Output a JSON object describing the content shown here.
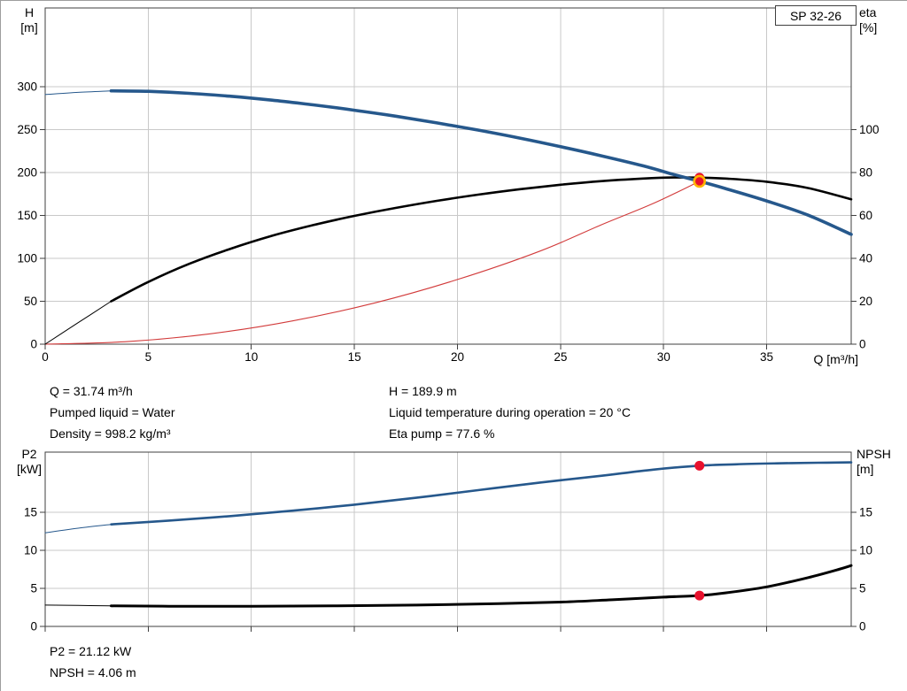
{
  "pump_label": "SP 32-26",
  "colors": {
    "curve_blue": "#26588c",
    "curve_black": "#000000",
    "curve_red": "#d23b3b",
    "grid": "#c9c9c9",
    "axis": "#3f3f3f",
    "marker_red": "#e8112d",
    "marker_ring": "#ffb400"
  },
  "info_top": {
    "col1": [
      "Q = 31.74 m³/h",
      "Pumped liquid = Water",
      "Density = 998.2 kg/m³"
    ],
    "col2": [
      "H = 189.9 m",
      "Liquid temperature during operation = 20 °C",
      "Eta pump = 77.6 %"
    ]
  },
  "info_bottom": [
    "P2 = 21.12 kW",
    "NPSH = 4.06 m"
  ],
  "chart_data": [
    {
      "type": "line",
      "id": "qh-eta",
      "title": "",
      "x_axis": {
        "label": "Q [m³/h]",
        "min": 0,
        "max": 39.1,
        "ticks": [
          0,
          5,
          10,
          15,
          20,
          25,
          30,
          35
        ],
        "show_labels": true
      },
      "y_left": {
        "label_lines": [
          "H",
          "[m]"
        ],
        "min": 0,
        "max": 392,
        "ticks": [
          0,
          50,
          100,
          150,
          200,
          250,
          300
        ]
      },
      "y_right": {
        "label_lines": [
          "eta",
          "[%]"
        ],
        "min": 0,
        "max": 156.7,
        "ticks": [
          0,
          20,
          40,
          60,
          80,
          100
        ]
      },
      "curves": [
        {
          "name": "system-curve",
          "axis": "left",
          "color_key": "curve_red",
          "segments": [
            {
              "width": 1.1,
              "points": [
                [
                  0,
                  0
                ],
                [
                  4,
                  3
                ],
                [
                  8,
                  12.1
                ],
                [
                  12,
                  27.1
                ],
                [
                  16,
                  48.2
                ],
                [
                  20,
                  75.4
                ],
                [
                  24,
                  108.5
                ],
                [
                  27,
                  139.4
                ],
                [
                  29.5,
                  164.1
                ],
                [
                  31.74,
                  189.9
                ]
              ]
            }
          ]
        },
        {
          "name": "eta-curve",
          "axis": "right",
          "color_key": "curve_black",
          "segments": [
            {
              "width": 1,
              "points": [
                [
                  0,
                  0
                ],
                [
                  1.6,
                  10
                ],
                [
                  3.2,
                  20
                ]
              ]
            },
            {
              "width": 2.6,
              "points": [
                [
                  3.2,
                  20
                ],
                [
                  5,
                  29
                ],
                [
                  7,
                  37.5
                ],
                [
                  9,
                  44.5
                ],
                [
                  11,
                  50.5
                ],
                [
                  13,
                  55.5
                ],
                [
                  15,
                  59.8
                ],
                [
                  17,
                  63.5
                ],
                [
                  19,
                  66.8
                ],
                [
                  21,
                  69.7
                ],
                [
                  23,
                  72.2
                ],
                [
                  25,
                  74.3
                ],
                [
                  27,
                  76
                ],
                [
                  29,
                  77.2
                ],
                [
                  30.5,
                  77.7
                ],
                [
                  31.74,
                  77.6
                ],
                [
                  33,
                  77.2
                ],
                [
                  35,
                  75.7
                ],
                [
                  37,
                  72.8
                ],
                [
                  39.1,
                  67.5
                ]
              ]
            }
          ]
        },
        {
          "name": "qh-curve",
          "axis": "left",
          "color_key": "curve_blue",
          "segments": [
            {
              "width": 1,
              "points": [
                [
                  0,
                  291
                ],
                [
                  1.6,
                  293.6
                ],
                [
                  3.2,
                  295.3
                ]
              ]
            },
            {
              "width": 3.6,
              "points": [
                [
                  3.2,
                  295.3
                ],
                [
                  5,
                  294.8
                ],
                [
                  7,
                  292.5
                ],
                [
                  9,
                  289
                ],
                [
                  11,
                  284.5
                ],
                [
                  13,
                  279
                ],
                [
                  15,
                  272.8
                ],
                [
                  17,
                  265.8
                ],
                [
                  19,
                  258
                ],
                [
                  21,
                  249.6
                ],
                [
                  23,
                  240.4
                ],
                [
                  25,
                  230.3
                ],
                [
                  27,
                  219.5
                ],
                [
                  29,
                  208
                ],
                [
                  30.5,
                  197.8
                ],
                [
                  31.74,
                  189.9
                ],
                [
                  33,
                  181.5
                ],
                [
                  35,
                  167
                ],
                [
                  37,
                  150.5
                ],
                [
                  39.1,
                  128
                ]
              ]
            }
          ]
        }
      ],
      "markers": [
        {
          "name": "eta-duty-marker",
          "q": 31.74,
          "value": 77.6,
          "axis": "right",
          "r": 5.5,
          "fill_key": "marker_red"
        },
        {
          "name": "duty-point-marker",
          "q": 31.74,
          "value": 189.9,
          "axis": "left",
          "r": 6,
          "fill_key": "marker_red",
          "ring_key": "marker_ring",
          "ring_width": 2.6
        }
      ]
    },
    {
      "type": "line",
      "id": "p2-npsh",
      "title": "",
      "x_axis": {
        "label": "",
        "min": 0,
        "max": 39.1,
        "ticks": [
          0,
          5,
          10,
          15,
          20,
          25,
          30,
          35
        ],
        "show_labels": false
      },
      "y_left": {
        "label_lines": [
          "P2",
          "[kW]"
        ],
        "min": 0,
        "max": 22.9,
        "ticks": [
          0,
          5,
          10,
          15
        ]
      },
      "y_right": {
        "label_lines": [
          "NPSH",
          "[m]"
        ],
        "min": 0,
        "max": 22.9,
        "ticks": [
          0,
          5,
          10,
          15
        ]
      },
      "curves": [
        {
          "name": "p2-curve",
          "axis": "left",
          "color_key": "curve_blue",
          "segments": [
            {
              "width": 1,
              "points": [
                [
                  0,
                  12.3
                ],
                [
                  1.6,
                  12.9
                ],
                [
                  3.2,
                  13.4
                ]
              ]
            },
            {
              "width": 2.6,
              "points": [
                [
                  3.2,
                  13.4
                ],
                [
                  6,
                  13.9
                ],
                [
                  9,
                  14.5
                ],
                [
                  12,
                  15.2
                ],
                [
                  15,
                  16
                ],
                [
                  18,
                  16.9
                ],
                [
                  21,
                  17.9
                ],
                [
                  24,
                  18.9
                ],
                [
                  27,
                  19.8
                ],
                [
                  29.5,
                  20.6
                ],
                [
                  31.74,
                  21.12
                ],
                [
                  33.5,
                  21.3
                ],
                [
                  35.5,
                  21.42
                ],
                [
                  37.5,
                  21.5
                ],
                [
                  39.1,
                  21.55
                ]
              ]
            }
          ]
        },
        {
          "name": "npsh-curve",
          "axis": "right",
          "color_key": "curve_black",
          "segments": [
            {
              "width": 1,
              "points": [
                [
                  0,
                  2.8
                ],
                [
                  1.6,
                  2.75
                ],
                [
                  3.2,
                  2.7
                ]
              ]
            },
            {
              "width": 3,
              "points": [
                [
                  3.2,
                  2.7
                ],
                [
                  6,
                  2.65
                ],
                [
                  10,
                  2.65
                ],
                [
                  14,
                  2.7
                ],
                [
                  18,
                  2.8
                ],
                [
                  22,
                  3.0
                ],
                [
                  25,
                  3.2
                ],
                [
                  27.5,
                  3.5
                ],
                [
                  30,
                  3.85
                ],
                [
                  31.74,
                  4.06
                ],
                [
                  33,
                  4.4
                ],
                [
                  35,
                  5.2
                ],
                [
                  37,
                  6.4
                ],
                [
                  38.5,
                  7.5
                ],
                [
                  39.1,
                  8.0
                ]
              ]
            }
          ]
        }
      ],
      "markers": [
        {
          "name": "p2-duty-marker",
          "q": 31.74,
          "value": 21.12,
          "axis": "left",
          "r": 5.5,
          "fill_key": "marker_red"
        },
        {
          "name": "npsh-duty-marker",
          "q": 31.74,
          "value": 4.06,
          "axis": "right",
          "r": 5.5,
          "fill_key": "marker_red"
        }
      ]
    }
  ]
}
